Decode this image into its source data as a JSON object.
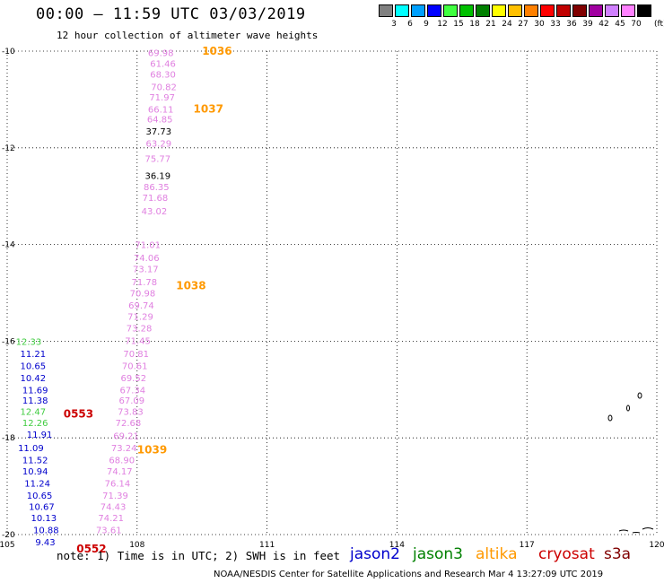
{
  "header": {
    "title": "00:00 – 11:59 UTC 03/03/2019",
    "subtitle": "12 hour collection of altimeter wave heights"
  },
  "legend": {
    "unit": "(ft)",
    "items": [
      {
        "color": "#808080",
        "label": "3"
      },
      {
        "color": "#00ffff",
        "label": "6"
      },
      {
        "color": "#00a0ff",
        "label": "9"
      },
      {
        "color": "#0000ff",
        "label": "12"
      },
      {
        "color": "#40ff40",
        "label": "15"
      },
      {
        "color": "#00c000",
        "label": "18"
      },
      {
        "color": "#008000",
        "label": "21"
      },
      {
        "color": "#ffff00",
        "label": "24"
      },
      {
        "color": "#ffc000",
        "label": "27"
      },
      {
        "color": "#ff8000",
        "label": "30"
      },
      {
        "color": "#ff0000",
        "label": "33"
      },
      {
        "color": "#c00000",
        "label": "36"
      },
      {
        "color": "#800000",
        "label": "39"
      },
      {
        "color": "#a000a0",
        "label": "42"
      },
      {
        "color": "#d080ff",
        "label": "45"
      },
      {
        "color": "#ff80ff",
        "label": "70"
      },
      {
        "color": "#000000",
        "label": ""
      }
    ]
  },
  "footer": {
    "note": "note: 1) Time is in UTC; 2) SWH is in feet",
    "satellites": [
      {
        "name": "jason2",
        "color": "#0000cc"
      },
      {
        "name": "jason3",
        "color": "#008000"
      },
      {
        "name": "altika",
        "color": "#ff9900"
      },
      {
        "name": "cryosat",
        "color": "#cc0000"
      },
      {
        "name": "s3a",
        "color": "#800000"
      }
    ],
    "credit": "NOAA/NESDIS Center for Satellite Applications and Research    Mar  4 13:27:09 UTC 2019"
  },
  "chart_data": {
    "type": "scatter",
    "xlim": [
      105,
      120
    ],
    "ylim": [
      -20,
      -10
    ],
    "x_ticks": [
      "105",
      "108",
      "111",
      "114",
      "117",
      "120"
    ],
    "y_ticks": [
      "-10",
      "-12",
      "-14",
      "-16",
      "-18",
      "-20"
    ],
    "grid": true,
    "series": [
      {
        "name": "altika",
        "color": "#e080e0",
        "points": [
          {
            "x": 108.25,
            "y": -10.03,
            "label": "69.98"
          },
          {
            "x": 108.3,
            "y": -10.25,
            "label": "61.46"
          },
          {
            "x": 108.3,
            "y": -10.47,
            "label": "68.30"
          },
          {
            "x": 108.32,
            "y": -10.73,
            "label": "70.82"
          },
          {
            "x": 108.28,
            "y": -10.95,
            "label": "71.97"
          },
          {
            "x": 108.25,
            "y": -11.2,
            "label": "66.11"
          },
          {
            "x": 108.23,
            "y": -11.4,
            "label": "64.85"
          },
          {
            "x": 108.2,
            "y": -11.9,
            "label": "63.29"
          },
          {
            "x": 108.18,
            "y": -12.22,
            "label": "75.77"
          },
          {
            "x": 108.15,
            "y": -12.8,
            "label": "86.35"
          },
          {
            "x": 108.12,
            "y": -13.02,
            "label": "71.68"
          },
          {
            "x": 108.1,
            "y": -13.3,
            "label": "43.02"
          },
          {
            "x": 107.95,
            "y": -14.0,
            "label": "71.01"
          },
          {
            "x": 107.92,
            "y": -14.27,
            "label": "74.06"
          },
          {
            "x": 107.9,
            "y": -14.5,
            "label": "73.17"
          },
          {
            "x": 107.87,
            "y": -14.77,
            "label": "71.78"
          },
          {
            "x": 107.83,
            "y": -15.0,
            "label": "70.98"
          },
          {
            "x": 107.8,
            "y": -15.25,
            "label": "69.74"
          },
          {
            "x": 107.78,
            "y": -15.48,
            "label": "71.29"
          },
          {
            "x": 107.75,
            "y": -15.72,
            "label": "73.28"
          },
          {
            "x": 107.72,
            "y": -15.98,
            "label": "71.45"
          },
          {
            "x": 107.68,
            "y": -16.25,
            "label": "70.81"
          },
          {
            "x": 107.65,
            "y": -16.5,
            "label": "70.61"
          },
          {
            "x": 107.62,
            "y": -16.75,
            "label": "69.52"
          },
          {
            "x": 107.6,
            "y": -17.0,
            "label": "67.34"
          },
          {
            "x": 107.58,
            "y": -17.22,
            "label": "67.09"
          },
          {
            "x": 107.55,
            "y": -17.45,
            "label": "73.83"
          },
          {
            "x": 107.5,
            "y": -17.68,
            "label": "72.68"
          },
          {
            "x": 107.45,
            "y": -17.95,
            "label": "69.21"
          },
          {
            "x": 107.4,
            "y": -18.2,
            "label": "73.24"
          },
          {
            "x": 107.35,
            "y": -18.45,
            "label": "68.90"
          },
          {
            "x": 107.3,
            "y": -18.68,
            "label": "74.17"
          },
          {
            "x": 107.25,
            "y": -18.93,
            "label": "76.14"
          },
          {
            "x": 107.2,
            "y": -19.18,
            "label": "71.39"
          },
          {
            "x": 107.15,
            "y": -19.42,
            "label": "74.43"
          },
          {
            "x": 107.1,
            "y": -19.65,
            "label": "74.21"
          },
          {
            "x": 107.05,
            "y": -19.9,
            "label": "73.61"
          }
        ]
      },
      {
        "name": "s3a",
        "color": "#000000",
        "points": [
          {
            "x": 108.2,
            "y": -11.65,
            "label": "37.73"
          },
          {
            "x": 108.18,
            "y": -12.57,
            "label": "36.19"
          }
        ]
      },
      {
        "name": "jason2",
        "color": "#0000cc",
        "points": [
          {
            "x": 105.3,
            "y": -16.25,
            "label": "11.21"
          },
          {
            "x": 105.3,
            "y": -16.5,
            "label": "10.65"
          },
          {
            "x": 105.3,
            "y": -16.75,
            "label": "10.42"
          },
          {
            "x": 105.35,
            "y": -17.0,
            "label": "11.69"
          },
          {
            "x": 105.35,
            "y": -17.22,
            "label": "11.38"
          },
          {
            "x": 105.45,
            "y": -17.92,
            "label": "11.91"
          },
          {
            "x": 105.25,
            "y": -18.2,
            "label": "11.09"
          },
          {
            "x": 105.35,
            "y": -18.45,
            "label": "11.52"
          },
          {
            "x": 105.35,
            "y": -18.68,
            "label": "10.94"
          },
          {
            "x": 105.4,
            "y": -18.93,
            "label": "11.24"
          },
          {
            "x": 105.45,
            "y": -19.18,
            "label": "10.65"
          },
          {
            "x": 105.5,
            "y": -19.42,
            "label": "10.67"
          },
          {
            "x": 105.55,
            "y": -19.65,
            "label": "10.13"
          },
          {
            "x": 105.6,
            "y": -19.9,
            "label": "10.88"
          },
          {
            "x": 105.65,
            "y": -20.15,
            "label": "9.43"
          }
        ]
      },
      {
        "name": "jason3",
        "color": "#40cc40",
        "points": [
          {
            "x": 105.2,
            "y": -16.0,
            "label": "12.33"
          },
          {
            "x": 105.3,
            "y": -17.45,
            "label": "12.47"
          },
          {
            "x": 105.35,
            "y": -17.68,
            "label": "12.26"
          }
        ]
      }
    ],
    "pass_times": [
      {
        "label": "1036",
        "color": "#ff9900",
        "x": 109.5,
        "y": -10.0
      },
      {
        "label": "1037",
        "color": "#ff9900",
        "x": 109.3,
        "y": -11.2
      },
      {
        "label": "1038",
        "color": "#ff9900",
        "x": 108.9,
        "y": -14.85
      },
      {
        "label": "1039",
        "color": "#ff9900",
        "x": 108.0,
        "y": -18.25
      },
      {
        "label": "0553",
        "color": "#cc0000",
        "x": 106.3,
        "y": -17.5
      },
      {
        "label": "0552",
        "color": "#cc0000",
        "x": 106.6,
        "y": -20.3
      }
    ]
  }
}
